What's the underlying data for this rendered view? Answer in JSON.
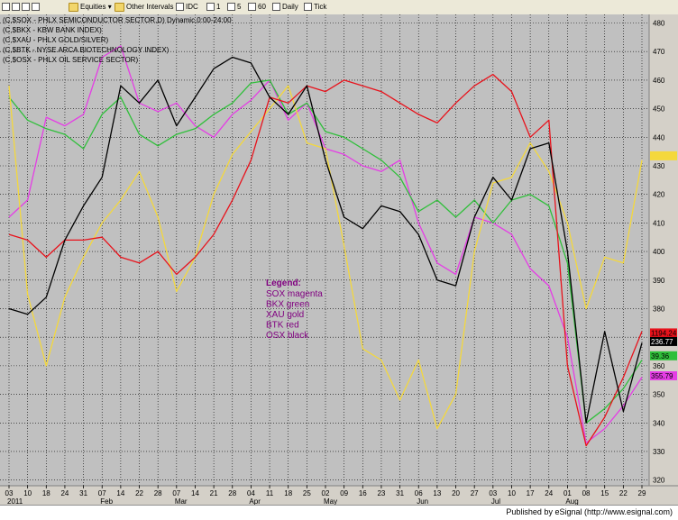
{
  "toolbar": {
    "items": [
      {
        "label": "Equities",
        "icon": "folder-icon"
      },
      {
        "label": "Other Intervals",
        "icon": "folder-icon"
      },
      {
        "label": "IDC",
        "icon": "gear-icon"
      },
      {
        "label": "1"
      },
      {
        "label": "5"
      },
      {
        "label": "60"
      },
      {
        "label": "Daily"
      },
      {
        "label": "Tick"
      }
    ]
  },
  "footer": {
    "text": "Published by eSignal (http://www.esignal.com)"
  },
  "chart_data": {
    "type": "line",
    "header_lines": [
      "(C,$SOX - PHLX SEMICONDUCTOR SECTOR,D) Dynamic,0:00-24:00",
      "(C,$BKX - KBW BANK INDEX)",
      "(C,$XAU - PHLX GOLD/SILVER)",
      "(C,$BTK - NYSE ARCA BIOTECHNOLOGY INDEX)",
      "(C,$OSX - PHLX OIL SERVICE SECTOR)"
    ],
    "legend": {
      "title": "Legend:",
      "lines": [
        "SOX magenta",
        "BKX green",
        "XAU gold",
        "BTK red",
        "OSX black"
      ]
    },
    "y_ticks": [
      480,
      470,
      460,
      450,
      440,
      430,
      420,
      410,
      400,
      390,
      380,
      370,
      360,
      350,
      340,
      330,
      320
    ],
    "ylim": [
      318,
      483
    ],
    "x_tick_labels": [
      "03",
      "10",
      "18",
      "24",
      "31",
      "07",
      "14",
      "22",
      "28",
      "07",
      "14",
      "21",
      "28",
      "04",
      "11",
      "18",
      "25",
      "02",
      "09",
      "16",
      "23",
      "31",
      "06",
      "13",
      "20",
      "27",
      "03",
      "10",
      "17",
      "24",
      "01",
      "08",
      "15",
      "22",
      "29"
    ],
    "month_labels": [
      {
        "label": "2011",
        "index": 0
      },
      {
        "label": "Feb",
        "index": 5
      },
      {
        "label": "Mar",
        "index": 9
      },
      {
        "label": "Apr",
        "index": 13
      },
      {
        "label": "May",
        "index": 17
      },
      {
        "label": "Jun",
        "index": 22
      },
      {
        "label": "Jul",
        "index": 26
      },
      {
        "label": "Aug",
        "index": 30
      }
    ],
    "last_value_labels": [
      {
        "value": "1194.24",
        "y": 371.5,
        "color": "#e8121b"
      },
      {
        "value": "236.77",
        "y": 368.5,
        "color": "#000000"
      },
      {
        "value": "39.36",
        "y": 363.5,
        "color": "#2fbf3a"
      },
      {
        "value": "355.79",
        "y": 356.5,
        "color": "#e53de5"
      },
      {
        "value": "",
        "y": 433.5,
        "color": "#f4d83c"
      }
    ],
    "series": [
      {
        "color": "#e53de5",
        "x": [
          0,
          1,
          2,
          3,
          4,
          5,
          6,
          7,
          8,
          9,
          10,
          11,
          12,
          13,
          14,
          15,
          16,
          17,
          18,
          19,
          20,
          21,
          22,
          23,
          24,
          25,
          26,
          27,
          28,
          29,
          30,
          31,
          32,
          33,
          34
        ],
        "y": [
          412,
          418,
          447,
          444,
          448,
          468,
          472,
          452,
          449,
          452,
          444,
          440,
          448,
          453,
          460,
          446,
          452,
          436,
          434,
          430,
          428,
          432,
          410,
          396,
          392,
          412,
          410,
          406,
          394,
          388,
          370,
          333,
          338,
          346,
          356
        ]
      },
      {
        "color": "#2fbf3a",
        "x": [
          0,
          1,
          2,
          3,
          4,
          5,
          6,
          7,
          8,
          9,
          10,
          11,
          12,
          13,
          14,
          15,
          16,
          17,
          18,
          19,
          20,
          21,
          22,
          23,
          24,
          25,
          26,
          27,
          28,
          29,
          30,
          31,
          32,
          33,
          34
        ],
        "y": [
          454,
          446,
          443,
          441,
          436,
          448,
          454,
          441,
          437,
          441,
          443,
          448,
          452,
          459,
          460,
          448,
          452,
          442,
          440,
          436,
          432,
          426,
          414,
          418,
          412,
          418,
          410,
          418,
          420,
          416,
          396,
          340,
          345,
          352,
          362
        ]
      },
      {
        "color": "#f4d83c",
        "x": [
          0,
          1,
          2,
          3,
          4,
          5,
          6,
          7,
          8,
          9,
          10,
          11,
          12,
          13,
          14,
          15,
          16,
          17,
          18,
          19,
          20,
          21,
          22,
          23,
          24,
          25,
          26,
          27,
          28,
          29,
          30,
          31,
          32,
          33,
          34
        ],
        "y": [
          458,
          385,
          360,
          384,
          398,
          410,
          418,
          428,
          412,
          386,
          398,
          420,
          434,
          442,
          450,
          458,
          438,
          436,
          402,
          366,
          362,
          348,
          362,
          338,
          350,
          400,
          424,
          426,
          438,
          428,
          410,
          380,
          398,
          396,
          432
        ]
      },
      {
        "color": "#e8121b",
        "x": [
          0,
          1,
          2,
          3,
          4,
          5,
          6,
          7,
          8,
          9,
          10,
          11,
          12,
          13,
          14,
          15,
          16,
          17,
          18,
          19,
          20,
          21,
          22,
          23,
          24,
          25,
          26,
          27,
          28,
          29,
          30,
          31,
          32,
          33,
          34
        ],
        "y": [
          406,
          404,
          398,
          404,
          404,
          405,
          398,
          396,
          400,
          392,
          398,
          406,
          418,
          432,
          454,
          452,
          458,
          456,
          460,
          458,
          456,
          452,
          448,
          445,
          452,
          458,
          462,
          456,
          440,
          446,
          360,
          332,
          342,
          356,
          372
        ]
      },
      {
        "color": "#000000",
        "x": [
          0,
          1,
          2,
          3,
          4,
          5,
          6,
          7,
          8,
          9,
          10,
          11,
          12,
          13,
          14,
          15,
          16,
          17,
          18,
          19,
          20,
          21,
          22,
          23,
          24,
          25,
          26,
          27,
          28,
          29,
          30,
          31,
          32,
          33,
          34
        ],
        "y": [
          380,
          378,
          384,
          404,
          416,
          426,
          458,
          452,
          460,
          444,
          454,
          464,
          468,
          466,
          454,
          448,
          458,
          432,
          412,
          408,
          416,
          414,
          406,
          390,
          388,
          412,
          426,
          418,
          436,
          438,
          400,
          340,
          372,
          344,
          368
        ]
      }
    ]
  }
}
